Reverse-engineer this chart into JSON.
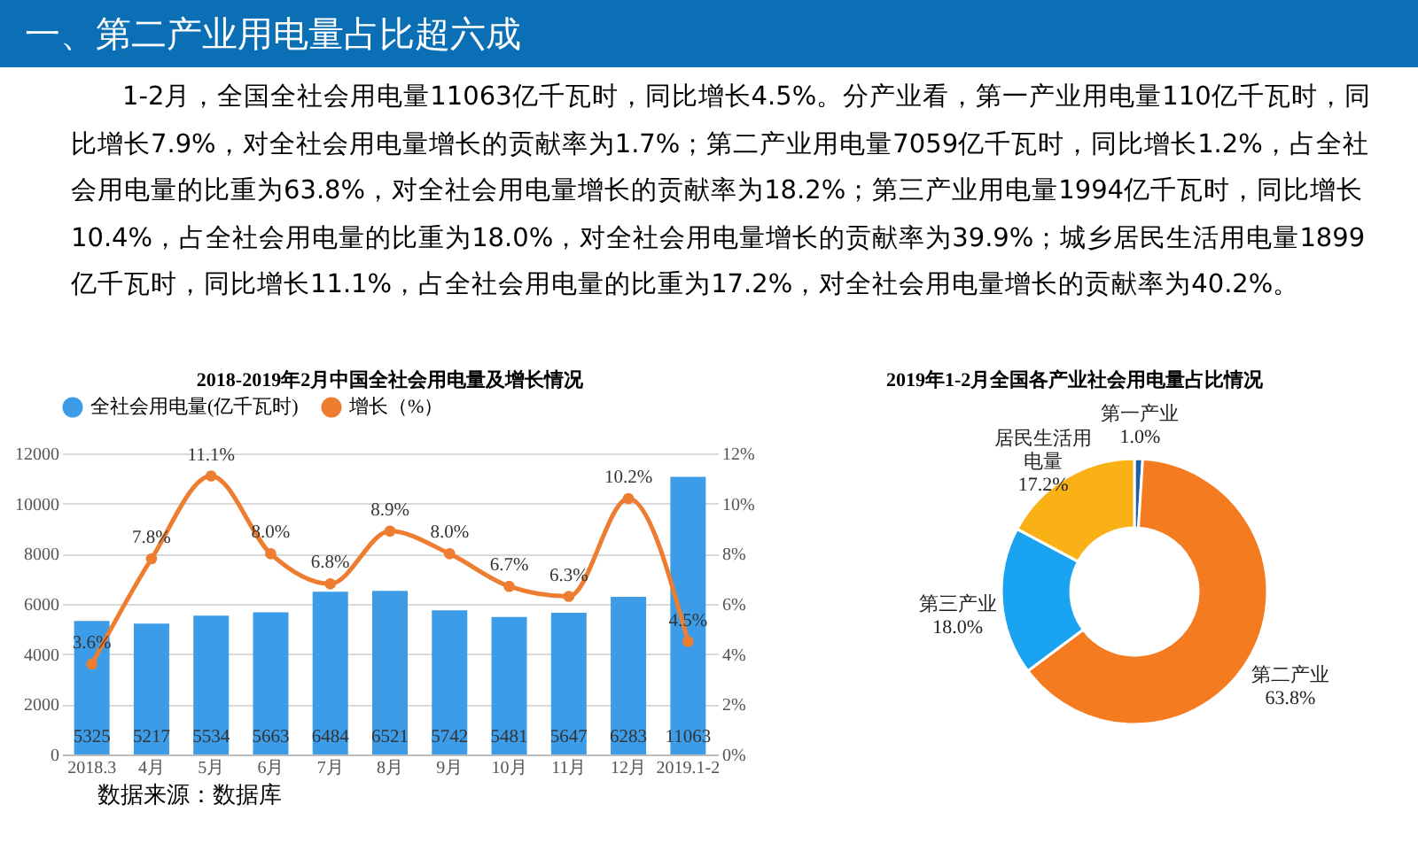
{
  "chart_data": [
    {
      "type": "other",
      "title": "一、第二产业用电量占比超六成",
      "annotations": [
        "1-2月，全国全社会用电量11063亿千瓦时，同比增长4.5%。分产业看，第一产业用电量110亿千瓦时，同比增长7.9%，对全社会用电量增长的贡献率为1.7%；第二产业用电量7059亿千瓦时，同比增长1.2%，占全社会用电量的比重为63.8%，对全社会用电量增长的贡献率为18.2%；第三产业用电量1994亿千瓦时，同比增长10.4%，占全社会用电量的比重为18.0%，对全社会用电量增长的贡献率为39.9%；城乡居民生活用电量1899亿千瓦时，同比增长11.1%，占全社会用电量的比重为17.2%，对全社会用电量增长的贡献率为40.2%。"
      ]
    },
    {
      "type": "bar",
      "title": "2018-2019年2月中国全社会用电量及增长情况",
      "categories": [
        "2018.3",
        "4月",
        "5月",
        "6月",
        "7月",
        "8月",
        "9月",
        "10月",
        "11月",
        "12月",
        "2019.1-2"
      ],
      "series": [
        {
          "name": "全社会用电量(亿千瓦时)",
          "color": "#3d9ce8",
          "values": [
            5325,
            5217,
            5534,
            5663,
            6484,
            6521,
            5742,
            5481,
            5647,
            6283,
            11063
          ],
          "value_labels": [
            "5325",
            "5217",
            "5534",
            "5663",
            "6484",
            "6521",
            "5742",
            "5481",
            "5647",
            "6283",
            "11063"
          ]
        },
        {
          "name": "增长（%）",
          "type": "line",
          "axis": "y2",
          "color": "#ed7d31",
          "values": [
            3.6,
            7.8,
            11.1,
            8.0,
            6.8,
            8.9,
            8.0,
            6.7,
            6.3,
            10.2,
            4.5
          ],
          "value_labels": [
            "3.6%",
            "7.8%",
            "11.1%",
            "8.0%",
            "6.8%",
            "8.9%",
            "8.0%",
            "6.7%",
            "6.3%",
            "10.2%",
            "4.5%"
          ]
        }
      ],
      "ylim": [
        0,
        12000
      ],
      "yticks": [
        0,
        2000,
        4000,
        6000,
        8000,
        10000,
        12000
      ],
      "y2lim": [
        0,
        12
      ],
      "y2ticks": [
        {
          "value": 0,
          "label": "0%"
        },
        {
          "value": 2,
          "label": "2%"
        },
        {
          "value": 4,
          "label": "4%"
        },
        {
          "value": 6,
          "label": "6%"
        },
        {
          "value": 8,
          "label": "8%"
        },
        {
          "value": 10,
          "label": "10%"
        },
        {
          "value": 12,
          "label": "12%"
        }
      ],
      "grid": "y",
      "legend": "top",
      "marker": "circle",
      "line_style": "solid",
      "annotations": [
        "数据来源：数据库"
      ]
    },
    {
      "type": "donut",
      "title": "2019年1-2月全国各产业社会用电量占比情况",
      "categories": [
        "第一产业",
        "第二产业",
        "第三产业",
        "居民生活用电量"
      ],
      "values": [
        1.0,
        63.8,
        18.0,
        17.2
      ],
      "value_labels": [
        "1.0%",
        "63.8%",
        "18.0%",
        "17.2%"
      ],
      "colors": [
        "#1f5fa8",
        "#f47b20",
        "#1aa3f0",
        "#f9b116"
      ],
      "legend": false
    }
  ]
}
